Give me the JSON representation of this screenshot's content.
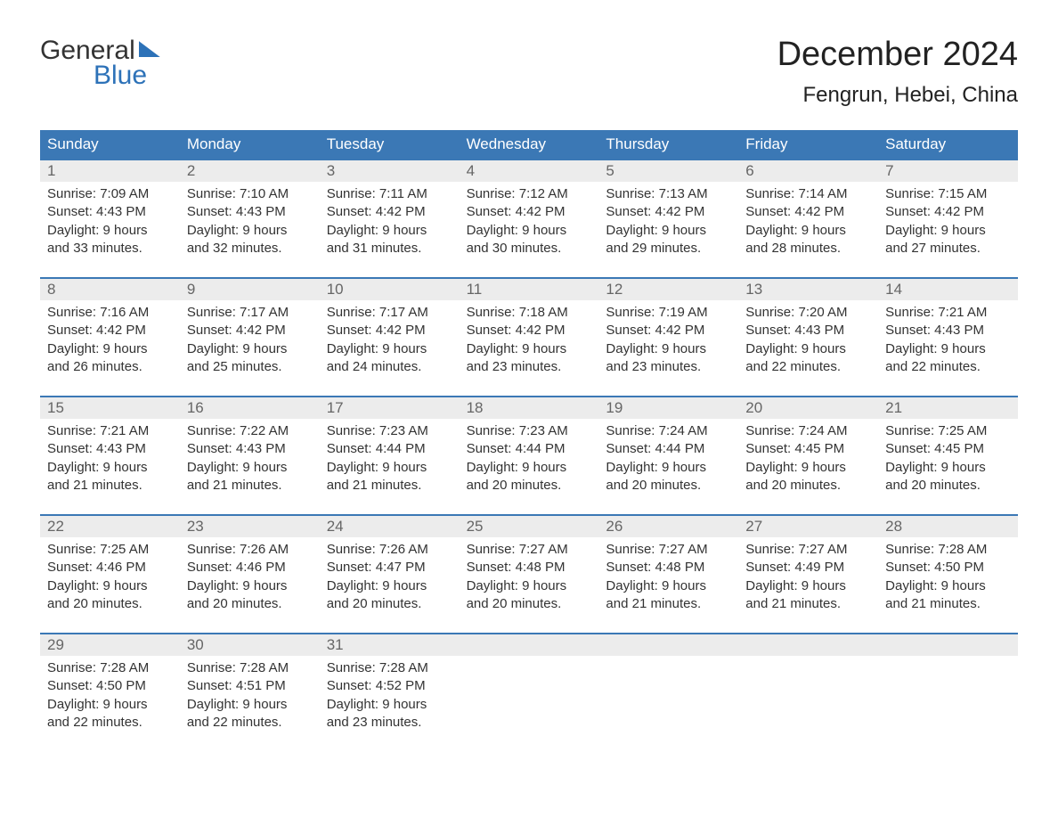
{
  "logo": {
    "line1": "General",
    "line2": "Blue"
  },
  "title": "December 2024",
  "location": "Fengrun, Hebei, China",
  "colors": {
    "header_bg": "#3b78b5",
    "header_text": "#ffffff",
    "daynum_bg": "#ececec",
    "daynum_text": "#666666",
    "body_text": "#333333",
    "logo_blue": "#2d72b8",
    "week_border": "#3b78b5",
    "background": "#ffffff"
  },
  "typography": {
    "title_fontsize": 38,
    "location_fontsize": 24,
    "weekday_fontsize": 17,
    "daynum_fontsize": 17,
    "detail_fontsize": 15,
    "logo_fontsize": 30
  },
  "weekdays": [
    "Sunday",
    "Monday",
    "Tuesday",
    "Wednesday",
    "Thursday",
    "Friday",
    "Saturday"
  ],
  "weeks": [
    [
      {
        "day": "1",
        "sunrise": "Sunrise: 7:09 AM",
        "sunset": "Sunset: 4:43 PM",
        "daylight1": "Daylight: 9 hours",
        "daylight2": "and 33 minutes."
      },
      {
        "day": "2",
        "sunrise": "Sunrise: 7:10 AM",
        "sunset": "Sunset: 4:43 PM",
        "daylight1": "Daylight: 9 hours",
        "daylight2": "and 32 minutes."
      },
      {
        "day": "3",
        "sunrise": "Sunrise: 7:11 AM",
        "sunset": "Sunset: 4:42 PM",
        "daylight1": "Daylight: 9 hours",
        "daylight2": "and 31 minutes."
      },
      {
        "day": "4",
        "sunrise": "Sunrise: 7:12 AM",
        "sunset": "Sunset: 4:42 PM",
        "daylight1": "Daylight: 9 hours",
        "daylight2": "and 30 minutes."
      },
      {
        "day": "5",
        "sunrise": "Sunrise: 7:13 AM",
        "sunset": "Sunset: 4:42 PM",
        "daylight1": "Daylight: 9 hours",
        "daylight2": "and 29 minutes."
      },
      {
        "day": "6",
        "sunrise": "Sunrise: 7:14 AM",
        "sunset": "Sunset: 4:42 PM",
        "daylight1": "Daylight: 9 hours",
        "daylight2": "and 28 minutes."
      },
      {
        "day": "7",
        "sunrise": "Sunrise: 7:15 AM",
        "sunset": "Sunset: 4:42 PM",
        "daylight1": "Daylight: 9 hours",
        "daylight2": "and 27 minutes."
      }
    ],
    [
      {
        "day": "8",
        "sunrise": "Sunrise: 7:16 AM",
        "sunset": "Sunset: 4:42 PM",
        "daylight1": "Daylight: 9 hours",
        "daylight2": "and 26 minutes."
      },
      {
        "day": "9",
        "sunrise": "Sunrise: 7:17 AM",
        "sunset": "Sunset: 4:42 PM",
        "daylight1": "Daylight: 9 hours",
        "daylight2": "and 25 minutes."
      },
      {
        "day": "10",
        "sunrise": "Sunrise: 7:17 AM",
        "sunset": "Sunset: 4:42 PM",
        "daylight1": "Daylight: 9 hours",
        "daylight2": "and 24 minutes."
      },
      {
        "day": "11",
        "sunrise": "Sunrise: 7:18 AM",
        "sunset": "Sunset: 4:42 PM",
        "daylight1": "Daylight: 9 hours",
        "daylight2": "and 23 minutes."
      },
      {
        "day": "12",
        "sunrise": "Sunrise: 7:19 AM",
        "sunset": "Sunset: 4:42 PM",
        "daylight1": "Daylight: 9 hours",
        "daylight2": "and 23 minutes."
      },
      {
        "day": "13",
        "sunrise": "Sunrise: 7:20 AM",
        "sunset": "Sunset: 4:43 PM",
        "daylight1": "Daylight: 9 hours",
        "daylight2": "and 22 minutes."
      },
      {
        "day": "14",
        "sunrise": "Sunrise: 7:21 AM",
        "sunset": "Sunset: 4:43 PM",
        "daylight1": "Daylight: 9 hours",
        "daylight2": "and 22 minutes."
      }
    ],
    [
      {
        "day": "15",
        "sunrise": "Sunrise: 7:21 AM",
        "sunset": "Sunset: 4:43 PM",
        "daylight1": "Daylight: 9 hours",
        "daylight2": "and 21 minutes."
      },
      {
        "day": "16",
        "sunrise": "Sunrise: 7:22 AM",
        "sunset": "Sunset: 4:43 PM",
        "daylight1": "Daylight: 9 hours",
        "daylight2": "and 21 minutes."
      },
      {
        "day": "17",
        "sunrise": "Sunrise: 7:23 AM",
        "sunset": "Sunset: 4:44 PM",
        "daylight1": "Daylight: 9 hours",
        "daylight2": "and 21 minutes."
      },
      {
        "day": "18",
        "sunrise": "Sunrise: 7:23 AM",
        "sunset": "Sunset: 4:44 PM",
        "daylight1": "Daylight: 9 hours",
        "daylight2": "and 20 minutes."
      },
      {
        "day": "19",
        "sunrise": "Sunrise: 7:24 AM",
        "sunset": "Sunset: 4:44 PM",
        "daylight1": "Daylight: 9 hours",
        "daylight2": "and 20 minutes."
      },
      {
        "day": "20",
        "sunrise": "Sunrise: 7:24 AM",
        "sunset": "Sunset: 4:45 PM",
        "daylight1": "Daylight: 9 hours",
        "daylight2": "and 20 minutes."
      },
      {
        "day": "21",
        "sunrise": "Sunrise: 7:25 AM",
        "sunset": "Sunset: 4:45 PM",
        "daylight1": "Daylight: 9 hours",
        "daylight2": "and 20 minutes."
      }
    ],
    [
      {
        "day": "22",
        "sunrise": "Sunrise: 7:25 AM",
        "sunset": "Sunset: 4:46 PM",
        "daylight1": "Daylight: 9 hours",
        "daylight2": "and 20 minutes."
      },
      {
        "day": "23",
        "sunrise": "Sunrise: 7:26 AM",
        "sunset": "Sunset: 4:46 PM",
        "daylight1": "Daylight: 9 hours",
        "daylight2": "and 20 minutes."
      },
      {
        "day": "24",
        "sunrise": "Sunrise: 7:26 AM",
        "sunset": "Sunset: 4:47 PM",
        "daylight1": "Daylight: 9 hours",
        "daylight2": "and 20 minutes."
      },
      {
        "day": "25",
        "sunrise": "Sunrise: 7:27 AM",
        "sunset": "Sunset: 4:48 PM",
        "daylight1": "Daylight: 9 hours",
        "daylight2": "and 20 minutes."
      },
      {
        "day": "26",
        "sunrise": "Sunrise: 7:27 AM",
        "sunset": "Sunset: 4:48 PM",
        "daylight1": "Daylight: 9 hours",
        "daylight2": "and 21 minutes."
      },
      {
        "day": "27",
        "sunrise": "Sunrise: 7:27 AM",
        "sunset": "Sunset: 4:49 PM",
        "daylight1": "Daylight: 9 hours",
        "daylight2": "and 21 minutes."
      },
      {
        "day": "28",
        "sunrise": "Sunrise: 7:28 AM",
        "sunset": "Sunset: 4:50 PM",
        "daylight1": "Daylight: 9 hours",
        "daylight2": "and 21 minutes."
      }
    ],
    [
      {
        "day": "29",
        "sunrise": "Sunrise: 7:28 AM",
        "sunset": "Sunset: 4:50 PM",
        "daylight1": "Daylight: 9 hours",
        "daylight2": "and 22 minutes."
      },
      {
        "day": "30",
        "sunrise": "Sunrise: 7:28 AM",
        "sunset": "Sunset: 4:51 PM",
        "daylight1": "Daylight: 9 hours",
        "daylight2": "and 22 minutes."
      },
      {
        "day": "31",
        "sunrise": "Sunrise: 7:28 AM",
        "sunset": "Sunset: 4:52 PM",
        "daylight1": "Daylight: 9 hours",
        "daylight2": "and 23 minutes."
      },
      null,
      null,
      null,
      null
    ]
  ]
}
